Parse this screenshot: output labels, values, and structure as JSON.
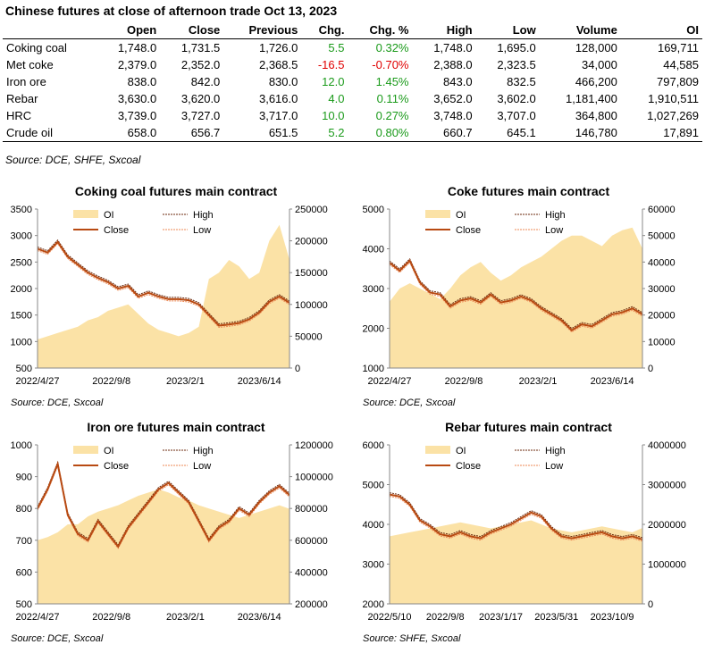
{
  "table": {
    "title": "Chinese futures at close of afternoon trade Oct 13, 2023",
    "headers": [
      "",
      "Open",
      "Close",
      "Previous",
      "Chg.",
      "Chg. %",
      "High",
      "Low",
      "Volume",
      "OI"
    ],
    "rows": [
      {
        "name": "Coking coal",
        "open": "1,748.0",
        "close": "1,731.5",
        "previous": "1,726.0",
        "chg": "5.5",
        "chg_pct": "0.32%",
        "high": "1,748.0",
        "low": "1,695.0",
        "volume": "128,000",
        "oi": "169,711",
        "dir": "pos"
      },
      {
        "name": "Met coke",
        "open": "2,379.0",
        "close": "2,352.0",
        "previous": "2,368.5",
        "chg": "-16.5",
        "chg_pct": "-0.70%",
        "high": "2,388.0",
        "low": "2,323.5",
        "volume": "34,000",
        "oi": "44,585",
        "dir": "neg"
      },
      {
        "name": "Iron ore",
        "open": "838.0",
        "close": "842.0",
        "previous": "830.0",
        "chg": "12.0",
        "chg_pct": "1.45%",
        "high": "843.0",
        "low": "832.5",
        "volume": "466,200",
        "oi": "797,809",
        "dir": "pos"
      },
      {
        "name": "Rebar",
        "open": "3,630.0",
        "close": "3,620.0",
        "previous": "3,616.0",
        "chg": "4.0",
        "chg_pct": "0.11%",
        "high": "3,652.0",
        "low": "3,602.0",
        "volume": "1,181,400",
        "oi": "1,910,511",
        "dir": "pos"
      },
      {
        "name": "HRC",
        "open": "3,739.0",
        "close": "3,727.0",
        "previous": "3,717.0",
        "chg": "10.0",
        "chg_pct": "0.27%",
        "high": "3,748.0",
        "low": "3,707.0",
        "volume": "364,800",
        "oi": "1,027,269",
        "dir": "pos"
      },
      {
        "name": "Crude oil",
        "open": "658.0",
        "close": "656.7",
        "previous": "651.5",
        "chg": "5.2",
        "chg_pct": "0.80%",
        "high": "660.7",
        "low": "645.1",
        "volume": "146,780",
        "oi": "17,891",
        "dir": "pos"
      }
    ],
    "source": "Source: DCE, SHFE, Sxcoal"
  },
  "colors": {
    "oi": "#fbe2a6",
    "close": "#b84a12",
    "high": "#6b2a0e",
    "low": "#ee8a55",
    "positive": "#1a9a1a",
    "negative": "#e00000"
  },
  "chart_data": [
    {
      "type": "line",
      "title": "Coking coal futures main contract",
      "source": "Source: DCE, Sxcoal",
      "legend": [
        "OI",
        "High",
        "Close",
        "Low"
      ],
      "x_tick_labels": [
        "2022/4/27",
        "2022/9/8",
        "2023/2/1",
        "2023/6/14"
      ],
      "y_left": {
        "min": 500,
        "max": 3500,
        "ticks": [
          "3500",
          "3000",
          "2500",
          "2000",
          "1500",
          "1000",
          "500"
        ]
      },
      "y_right": {
        "min": 0,
        "max": 250000,
        "ticks": [
          "250000",
          "200000",
          "150000",
          "100000",
          "50000",
          "0"
        ]
      },
      "close": [
        2750,
        2680,
        2880,
        2600,
        2450,
        2300,
        2200,
        2120,
        2000,
        2050,
        1850,
        1920,
        1850,
        1800,
        1800,
        1780,
        1700,
        1500,
        1300,
        1320,
        1350,
        1420,
        1550,
        1750,
        1850,
        1730
      ],
      "oi": [
        45000,
        50000,
        55000,
        60000,
        65000,
        75000,
        80000,
        90000,
        95000,
        100000,
        85000,
        70000,
        60000,
        55000,
        50000,
        55000,
        65000,
        140000,
        150000,
        170000,
        160000,
        140000,
        150000,
        200000,
        225000,
        170000
      ]
    },
    {
      "type": "line",
      "title": "Coke futures main contract",
      "source": "Source: DCE, Sxcoal",
      "legend": [
        "OI",
        "High",
        "Close",
        "Low"
      ],
      "x_tick_labels": [
        "2022/4/27",
        "2022/9/8",
        "2023/2/1",
        "2023/6/14"
      ],
      "y_left": {
        "min": 1000,
        "max": 5000,
        "ticks": [
          "5000",
          "4000",
          "3000",
          "2000",
          "1000"
        ]
      },
      "y_right": {
        "min": 0,
        "max": 60000,
        "ticks": [
          "60000",
          "50000",
          "40000",
          "30000",
          "20000",
          "10000",
          "0"
        ]
      },
      "close": [
        3650,
        3450,
        3700,
        3150,
        2900,
        2850,
        2550,
        2700,
        2750,
        2650,
        2850,
        2650,
        2700,
        2800,
        2700,
        2500,
        2350,
        2200,
        1950,
        2100,
        2050,
        2200,
        2350,
        2400,
        2500,
        2350
      ],
      "oi": [
        25000,
        30000,
        32000,
        30000,
        28000,
        26000,
        30000,
        35000,
        38000,
        40000,
        36000,
        33000,
        35000,
        38000,
        40000,
        42000,
        45000,
        48000,
        50000,
        50000,
        48000,
        46000,
        50000,
        52000,
        53000,
        45000
      ]
    },
    {
      "type": "line",
      "title": "Iron ore futures main contract",
      "source": "Source: DCE, Sxcoal",
      "legend": [
        "OI",
        "High",
        "Close",
        "Low"
      ],
      "x_tick_labels": [
        "2022/4/27",
        "2022/9/8",
        "2023/2/1",
        "2023/6/14"
      ],
      "y_left": {
        "min": 500,
        "max": 1000,
        "ticks": [
          "1000",
          "900",
          "800",
          "700",
          "600",
          "500"
        ]
      },
      "y_right": {
        "min": 200000,
        "max": 1200000,
        "ticks": [
          "1200000",
          "1000000",
          "800000",
          "600000",
          "400000",
          "200000"
        ]
      },
      "close": [
        800,
        860,
        940,
        780,
        720,
        700,
        760,
        720,
        680,
        740,
        780,
        820,
        860,
        880,
        850,
        820,
        760,
        700,
        740,
        760,
        800,
        780,
        820,
        850,
        870,
        842
      ],
      "oi": [
        600000,
        620000,
        650000,
        700000,
        700000,
        750000,
        780000,
        800000,
        820000,
        850000,
        880000,
        900000,
        920000,
        900000,
        870000,
        850000,
        820000,
        800000,
        780000,
        760000,
        740000,
        760000,
        780000,
        800000,
        820000,
        798000
      ]
    },
    {
      "type": "line",
      "title": "Rebar futures main contract",
      "source": "Source: SHFE, Sxcoal",
      "legend": [
        "OI",
        "High",
        "Close",
        "Low"
      ],
      "x_tick_labels": [
        "2022/5/10",
        "2022/9/8",
        "2023/1/17",
        "2023/5/31",
        "2023/10/9"
      ],
      "y_left": {
        "min": 2000,
        "max": 6000,
        "ticks": [
          "6000",
          "5000",
          "4000",
          "3000",
          "2000"
        ]
      },
      "y_right": {
        "min": 0,
        "max": 4000000,
        "ticks": [
          "4000000",
          "3000000",
          "2000000",
          "1000000",
          "0"
        ]
      },
      "close": [
        4750,
        4700,
        4500,
        4100,
        3950,
        3750,
        3700,
        3800,
        3700,
        3650,
        3800,
        3900,
        4000,
        4150,
        4300,
        4200,
        3900,
        3700,
        3650,
        3700,
        3750,
        3800,
        3700,
        3650,
        3700,
        3620
      ],
      "oi": [
        1700000,
        1750000,
        1800000,
        1850000,
        1900000,
        1950000,
        2000000,
        2050000,
        2000000,
        1950000,
        1900000,
        1950000,
        2000000,
        2050000,
        2100000,
        2000000,
        1900000,
        1850000,
        1800000,
        1850000,
        1900000,
        1950000,
        1900000,
        1850000,
        1800000,
        1910000
      ]
    }
  ]
}
